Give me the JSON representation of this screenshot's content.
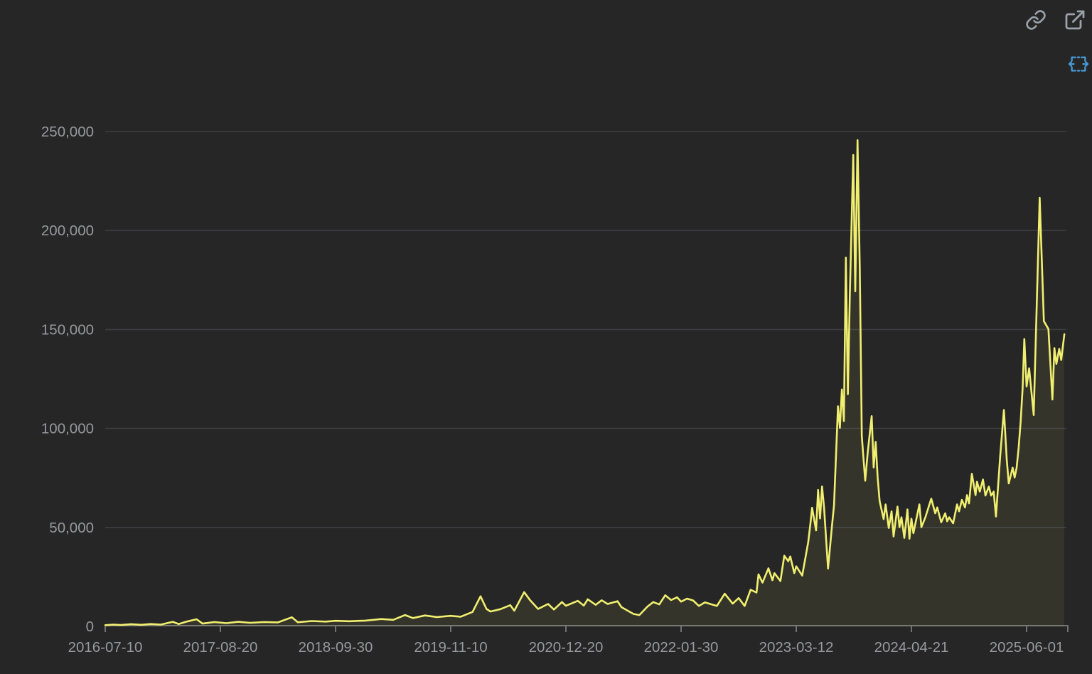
{
  "panel": {
    "title": "",
    "toolbar": {
      "icons": [
        "link-icon",
        "external-link-icon",
        "expand-horizontal-icon"
      ]
    }
  },
  "style": {
    "background": "#262626",
    "gridline_color": "#3c3e43",
    "axis_color": "#6f7175",
    "tick_label_color": "#97999e",
    "line_color": "#f1ef6f",
    "area_fill_color": "#f1ef6f",
    "area_fill_opacity": 0.07,
    "toolbar_icon_color": "#9aa1aa",
    "expand_icon_color": "#4597d3"
  },
  "chart_data": {
    "type": "line",
    "title": "",
    "xlabel": "",
    "ylabel": "",
    "grid": true,
    "legend": "none",
    "ylim": [
      0,
      250000
    ],
    "y_ticks": [
      {
        "value": 0,
        "label": "0"
      },
      {
        "value": 50000,
        "label": "50,000"
      },
      {
        "value": 100000,
        "label": "100,000"
      },
      {
        "value": 150000,
        "label": "150,000"
      },
      {
        "value": 200000,
        "label": "200,000"
      },
      {
        "value": 250000,
        "label": "250,000"
      }
    ],
    "x_ticks": [
      "2016-07-10",
      "2017-08-20",
      "2018-09-30",
      "2019-11-10",
      "2020-12-20",
      "2022-01-30",
      "2023-03-12",
      "2024-04-21",
      "2025-06-01"
    ],
    "x_tick_interval_days": 406,
    "x_start": "2016-07-10",
    "x_end": "2025-10-12",
    "points": [
      [
        "2016-07-10",
        600
      ],
      [
        "2016-08-07",
        900
      ],
      [
        "2016-09-04",
        700
      ],
      [
        "2016-10-09",
        1100
      ],
      [
        "2016-11-13",
        800
      ],
      [
        "2016-12-18",
        1200
      ],
      [
        "2017-01-22",
        900
      ],
      [
        "2017-03-05",
        2300
      ],
      [
        "2017-03-26",
        1200
      ],
      [
        "2017-04-23",
        2400
      ],
      [
        "2017-05-28",
        3600
      ],
      [
        "2017-06-18",
        1400
      ],
      [
        "2017-07-30",
        2200
      ],
      [
        "2017-09-10",
        1600
      ],
      [
        "2017-10-22",
        2300
      ],
      [
        "2017-12-03",
        1800
      ],
      [
        "2018-01-21",
        2200
      ],
      [
        "2018-03-11",
        2000
      ],
      [
        "2018-04-29",
        4600
      ],
      [
        "2018-05-20",
        2100
      ],
      [
        "2018-07-08",
        2700
      ],
      [
        "2018-08-26",
        2400
      ],
      [
        "2018-09-30",
        2800
      ],
      [
        "2018-11-18",
        2600
      ],
      [
        "2019-01-13",
        2900
      ],
      [
        "2019-03-10",
        3700
      ],
      [
        "2019-04-21",
        3300
      ],
      [
        "2019-06-02",
        5700
      ],
      [
        "2019-06-30",
        4200
      ],
      [
        "2019-08-11",
        5500
      ],
      [
        "2019-09-22",
        4700
      ],
      [
        "2019-11-10",
        5300
      ],
      [
        "2019-12-15",
        4900
      ],
      [
        "2020-01-26",
        7300
      ],
      [
        "2020-02-23",
        15200
      ],
      [
        "2020-03-15",
        8800
      ],
      [
        "2020-03-29",
        7500
      ],
      [
        "2020-05-03",
        8700
      ],
      [
        "2020-06-07",
        10700
      ],
      [
        "2020-06-21",
        7900
      ],
      [
        "2020-07-26",
        17300
      ],
      [
        "2020-08-16",
        13200
      ],
      [
        "2020-09-13",
        8800
      ],
      [
        "2020-10-18",
        11300
      ],
      [
        "2020-11-08",
        8500
      ],
      [
        "2020-12-06",
        12300
      ],
      [
        "2020-12-20",
        10400
      ],
      [
        "2021-01-31",
        12900
      ],
      [
        "2021-02-21",
        10500
      ],
      [
        "2021-03-07",
        13700
      ],
      [
        "2021-04-04",
        10900
      ],
      [
        "2021-04-25",
        13200
      ],
      [
        "2021-05-16",
        11300
      ],
      [
        "2021-06-20",
        12700
      ],
      [
        "2021-07-04",
        9700
      ],
      [
        "2021-08-15",
        6300
      ],
      [
        "2021-09-05",
        5700
      ],
      [
        "2021-10-03",
        9900
      ],
      [
        "2021-10-24",
        12300
      ],
      [
        "2021-11-14",
        11100
      ],
      [
        "2021-12-05",
        15700
      ],
      [
        "2021-12-26",
        13300
      ],
      [
        "2022-01-16",
        14700
      ],
      [
        "2022-01-30",
        12500
      ],
      [
        "2022-02-20",
        14000
      ],
      [
        "2022-03-13",
        13100
      ],
      [
        "2022-04-03",
        10300
      ],
      [
        "2022-04-24",
        12100
      ],
      [
        "2022-06-05",
        10300
      ],
      [
        "2022-07-03",
        16500
      ],
      [
        "2022-07-31",
        11500
      ],
      [
        "2022-08-21",
        14300
      ],
      [
        "2022-09-11",
        10300
      ],
      [
        "2022-10-02",
        18500
      ],
      [
        "2022-10-23",
        17100
      ],
      [
        "2022-10-30",
        26300
      ],
      [
        "2022-11-13",
        22100
      ],
      [
        "2022-12-04",
        29300
      ],
      [
        "2022-12-18",
        23300
      ],
      [
        "2022-12-25",
        26900
      ],
      [
        "2023-01-15",
        22900
      ],
      [
        "2023-01-29",
        35700
      ],
      [
        "2023-02-12",
        32900
      ],
      [
        "2023-02-19",
        35300
      ],
      [
        "2023-03-05",
        26900
      ],
      [
        "2023-03-12",
        30300
      ],
      [
        "2023-04-02",
        25700
      ],
      [
        "2023-04-23",
        42500
      ],
      [
        "2023-04-30",
        50900
      ],
      [
        "2023-05-07",
        59900
      ],
      [
        "2023-05-21",
        48500
      ],
      [
        "2023-05-28",
        68900
      ],
      [
        "2023-06-04",
        54500
      ],
      [
        "2023-06-11",
        70700
      ],
      [
        "2023-06-18",
        60100
      ],
      [
        "2023-07-02",
        29200
      ],
      [
        "2023-07-16",
        50900
      ],
      [
        "2023-07-23",
        61100
      ],
      [
        "2023-08-06",
        111200
      ],
      [
        "2023-08-13",
        100300
      ],
      [
        "2023-08-20",
        119700
      ],
      [
        "2023-08-27",
        103700
      ],
      [
        "2023-09-03",
        186300
      ],
      [
        "2023-09-10",
        117300
      ],
      [
        "2023-09-17",
        168000
      ],
      [
        "2023-09-29",
        238200
      ],
      [
        "2023-10-06",
        169300
      ],
      [
        "2023-10-14",
        245600
      ],
      [
        "2023-10-22",
        180000
      ],
      [
        "2023-10-29",
        96000
      ],
      [
        "2023-11-10",
        73600
      ],
      [
        "2023-11-19",
        88200
      ],
      [
        "2023-12-03",
        106200
      ],
      [
        "2023-12-10",
        80300
      ],
      [
        "2023-12-17",
        93200
      ],
      [
        "2023-12-24",
        75200
      ],
      [
        "2023-12-31",
        63300
      ],
      [
        "2024-01-14",
        54200
      ],
      [
        "2024-01-21",
        61600
      ],
      [
        "2024-02-01",
        49700
      ],
      [
        "2024-02-11",
        58100
      ],
      [
        "2024-02-18",
        45400
      ],
      [
        "2024-03-03",
        60500
      ],
      [
        "2024-03-10",
        50100
      ],
      [
        "2024-03-17",
        55100
      ],
      [
        "2024-03-27",
        44700
      ],
      [
        "2024-04-07",
        59100
      ],
      [
        "2024-04-14",
        44300
      ],
      [
        "2024-04-21",
        54400
      ],
      [
        "2024-04-28",
        47100
      ],
      [
        "2024-05-19",
        61600
      ],
      [
        "2024-05-26",
        50100
      ],
      [
        "2024-06-09",
        55100
      ],
      [
        "2024-06-30",
        64500
      ],
      [
        "2024-07-14",
        57100
      ],
      [
        "2024-07-21",
        60100
      ],
      [
        "2024-08-04",
        52600
      ],
      [
        "2024-08-18",
        57100
      ],
      [
        "2024-08-25",
        53100
      ],
      [
        "2024-09-01",
        55100
      ],
      [
        "2024-09-15",
        52100
      ],
      [
        "2024-09-29",
        61600
      ],
      [
        "2024-10-06",
        58100
      ],
      [
        "2024-10-16",
        63900
      ],
      [
        "2024-10-27",
        60100
      ],
      [
        "2024-11-03",
        66300
      ],
      [
        "2024-11-10",
        62100
      ],
      [
        "2024-11-20",
        77100
      ],
      [
        "2024-12-03",
        66300
      ],
      [
        "2024-12-08",
        73100
      ],
      [
        "2024-12-18",
        68100
      ],
      [
        "2024-12-29",
        74200
      ],
      [
        "2025-01-07",
        66100
      ],
      [
        "2025-01-19",
        70600
      ],
      [
        "2025-01-27",
        66100
      ],
      [
        "2025-02-05",
        68100
      ],
      [
        "2025-02-13",
        55500
      ],
      [
        "2025-02-28",
        86200
      ],
      [
        "2025-03-13",
        109300
      ],
      [
        "2025-03-23",
        84200
      ],
      [
        "2025-03-30",
        72200
      ],
      [
        "2025-04-13",
        80200
      ],
      [
        "2025-04-20",
        75200
      ],
      [
        "2025-04-27",
        80200
      ],
      [
        "2025-05-04",
        90200
      ],
      [
        "2025-05-11",
        103200
      ],
      [
        "2025-05-18",
        120200
      ],
      [
        "2025-05-24",
        145200
      ],
      [
        "2025-06-01",
        121200
      ],
      [
        "2025-06-10",
        130400
      ],
      [
        "2025-06-26",
        106800
      ],
      [
        "2025-07-17",
        216600
      ],
      [
        "2025-08-01",
        154200
      ],
      [
        "2025-08-17",
        150200
      ],
      [
        "2025-08-31",
        114600
      ],
      [
        "2025-09-07",
        140600
      ],
      [
        "2025-09-14",
        132600
      ],
      [
        "2025-09-24",
        140200
      ],
      [
        "2025-10-01",
        134600
      ],
      [
        "2025-10-12",
        147600
      ]
    ]
  }
}
